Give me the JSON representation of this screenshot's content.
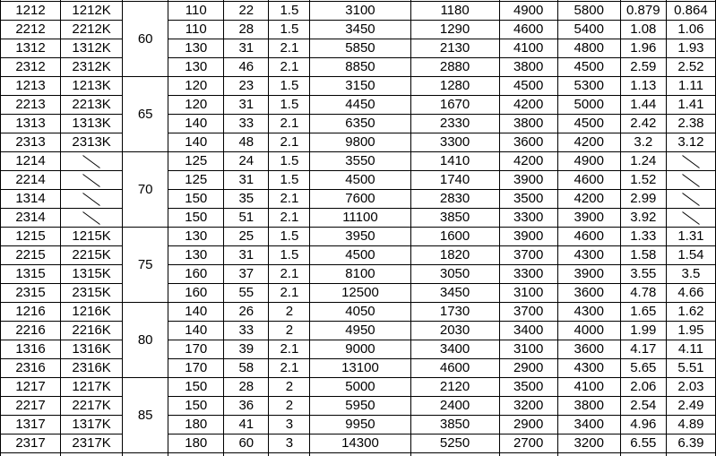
{
  "meta": {
    "background_color": "#ffffff",
    "border_color": "#000000",
    "text_color": "#000000",
    "empty_cell_marker": "diagonal-slash"
  },
  "table": {
    "groups": [
      {
        "d": "60",
        "rows": [
          [
            "1212",
            "1212K",
            "110",
            "22",
            "1.5",
            "3100",
            "1180",
            "4900",
            "5800",
            "0.879",
            "0.864"
          ],
          [
            "2212",
            "2212K",
            "110",
            "28",
            "1.5",
            "3450",
            "1290",
            "4600",
            "5400",
            "1.08",
            "1.06"
          ],
          [
            "1312",
            "1312K",
            "130",
            "31",
            "2.1",
            "5850",
            "2130",
            "4100",
            "4800",
            "1.96",
            "1.93"
          ],
          [
            "2312",
            "2312K",
            "130",
            "46",
            "2.1",
            "8850",
            "2880",
            "3800",
            "4500",
            "2.59",
            "2.52"
          ]
        ]
      },
      {
        "d": "65",
        "rows": [
          [
            "1213",
            "1213K",
            "120",
            "23",
            "1.5",
            "3150",
            "1280",
            "4500",
            "5300",
            "1.13",
            "1.11"
          ],
          [
            "2213",
            "2213K",
            "120",
            "31",
            "1.5",
            "4450",
            "1670",
            "4200",
            "5000",
            "1.44",
            "1.41"
          ],
          [
            "1313",
            "1313K",
            "140",
            "33",
            "2.1",
            "6350",
            "2330",
            "3800",
            "4500",
            "2.42",
            "2.38"
          ],
          [
            "2313",
            "2313K",
            "140",
            "48",
            "2.1",
            "9800",
            "3300",
            "3600",
            "4200",
            "3.2",
            "3.12"
          ]
        ]
      },
      {
        "d": "70",
        "rows": [
          [
            "1214",
            null,
            "125",
            "24",
            "1.5",
            "3550",
            "1410",
            "4200",
            "4900",
            "1.24",
            null
          ],
          [
            "2214",
            null,
            "125",
            "31",
            "1.5",
            "4500",
            "1740",
            "3900",
            "4600",
            "1.52",
            null
          ],
          [
            "1314",
            null,
            "150",
            "35",
            "2.1",
            "7600",
            "2830",
            "3500",
            "4200",
            "2.99",
            null
          ],
          [
            "2314",
            null,
            "150",
            "51",
            "2.1",
            "11100",
            "3850",
            "3300",
            "3900",
            "3.92",
            null
          ]
        ]
      },
      {
        "d": "75",
        "rows": [
          [
            "1215",
            "1215K",
            "130",
            "25",
            "1.5",
            "3950",
            "1600",
            "3900",
            "4600",
            "1.33",
            "1.31"
          ],
          [
            "2215",
            "2215K",
            "130",
            "31",
            "1.5",
            "4500",
            "1820",
            "3700",
            "4300",
            "1.58",
            "1.54"
          ],
          [
            "1315",
            "1315K",
            "160",
            "37",
            "2.1",
            "8100",
            "3050",
            "3300",
            "3900",
            "3.55",
            "3.5"
          ],
          [
            "2315",
            "2315K",
            "160",
            "55",
            "2.1",
            "12500",
            "3450",
            "3100",
            "3600",
            "4.78",
            "4.66"
          ]
        ]
      },
      {
        "d": "80",
        "rows": [
          [
            "1216",
            "1216K",
            "140",
            "26",
            "2",
            "4050",
            "1730",
            "3700",
            "4300",
            "1.65",
            "1.62"
          ],
          [
            "2216",
            "2216K",
            "140",
            "33",
            "2",
            "4950",
            "2030",
            "3400",
            "4000",
            "1.99",
            "1.95"
          ],
          [
            "1316",
            "1316K",
            "170",
            "39",
            "2.1",
            "9000",
            "3400",
            "3100",
            "3600",
            "4.17",
            "4.11"
          ],
          [
            "2316",
            "2316K",
            "170",
            "58",
            "2.1",
            "13100",
            "4600",
            "2900",
            "4300",
            "5.65",
            "5.51"
          ]
        ]
      },
      {
        "d": "85",
        "rows": [
          [
            "1217",
            "1217K",
            "150",
            "28",
            "2",
            "5000",
            "2120",
            "3500",
            "4100",
            "2.06",
            "2.03"
          ],
          [
            "2217",
            "2217K",
            "150",
            "36",
            "2",
            "5950",
            "2400",
            "3200",
            "3800",
            "2.54",
            "2.49"
          ],
          [
            "1317",
            "1317K",
            "180",
            "41",
            "3",
            "9950",
            "3850",
            "2900",
            "3400",
            "4.96",
            "4.89"
          ],
          [
            "2317",
            "2317K",
            "180",
            "60",
            "3",
            "14300",
            "5250",
            "2700",
            "3200",
            "6.55",
            "6.39"
          ]
        ]
      }
    ]
  }
}
